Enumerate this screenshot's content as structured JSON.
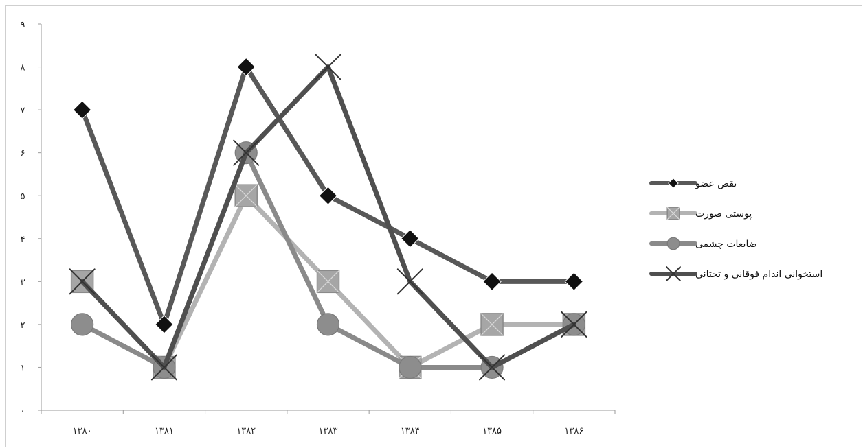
{
  "chart_data": {
    "type": "line",
    "categories": [
      "۱۳۸۰",
      "۱۳۸۱",
      "۱۳۸۲",
      "۱۳۸۳",
      "۱۳۸۴",
      "۱۳۸۵",
      "۱۳۸۶"
    ],
    "y_ticks": [
      "۰",
      "۱",
      "۲",
      "۳",
      "۴",
      "۵",
      "۶",
      "۷",
      "۸",
      "۹"
    ],
    "ylim": [
      0,
      9
    ],
    "grid": false,
    "legend_position": "right",
    "series": [
      {
        "name": "نقص عضو",
        "values": [
          7,
          2,
          8,
          5,
          4,
          3,
          3
        ],
        "line_color": "#585858",
        "marker": "diamond",
        "marker_color": "#111111"
      },
      {
        "name": "پوستی صورت",
        "values": [
          3,
          1,
          5,
          3,
          1,
          2,
          2
        ],
        "line_color": "#b3b3b3",
        "marker": "square-x",
        "marker_color": "#a6a6a6"
      },
      {
        "name": "ضایعات چشمی",
        "values": [
          2,
          1,
          6,
          2,
          1,
          1,
          2
        ],
        "line_color": "#8a8a8a",
        "marker": "circle",
        "marker_color": "#8d8d8d"
      },
      {
        "name": "استخوانی اندام فوقانی و تحتانی",
        "values": [
          3,
          1,
          6,
          8,
          3,
          1,
          2
        ],
        "line_color": "#4f4f4f",
        "marker": "x",
        "marker_color": "#333333"
      }
    ]
  }
}
